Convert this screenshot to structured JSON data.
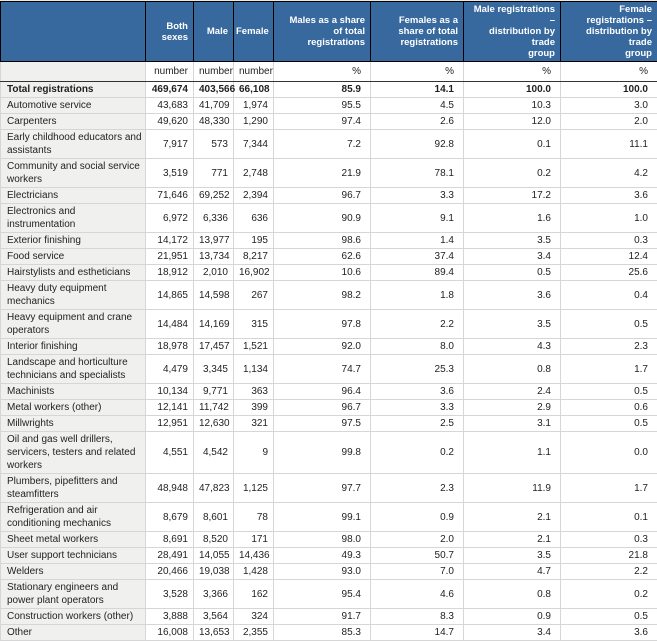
{
  "colors": {
    "header_bg": "#38699E",
    "header_text": "#FFFFFF",
    "header_border": "#000000",
    "strong_rule": "#333333",
    "row_separator": "#D6D6D6",
    "label_col_bg": "#F0F0EE",
    "cell_bg": "#FFFFFF",
    "page_bg": "#E9E9E9",
    "text": "#1F1F1F"
  },
  "chart_data": {
    "type": "table",
    "columns": [
      {
        "id": "row-label",
        "label": "",
        "lines": [
          ""
        ],
        "unit": ""
      },
      {
        "id": "both-sexes",
        "label": "Both sexes",
        "lines": [
          "Both",
          "sexes"
        ],
        "unit": "number"
      },
      {
        "id": "male",
        "label": "Male",
        "lines": [
          "Male"
        ],
        "unit": "number"
      },
      {
        "id": "female",
        "label": "Female",
        "lines": [
          "Female"
        ],
        "unit": "number"
      },
      {
        "id": "males-share-of-total",
        "label": "Males as a share of total registrations",
        "lines": [
          "Males as a share",
          "of total",
          "registrations"
        ],
        "unit": "%"
      },
      {
        "id": "females-share-of-total",
        "label": "Females as a share of total registrations",
        "lines": [
          "Females as a",
          "share of total",
          "registrations"
        ],
        "unit": "%"
      },
      {
        "id": "male-registrations-distribution",
        "label": "Male registrations – distribution by trade group",
        "lines": [
          "Male registrations –",
          "distribution by trade",
          "group"
        ],
        "unit": "%"
      },
      {
        "id": "female-registrations-distribution",
        "label": "Female registrations – distribution by trade group",
        "lines": [
          "Female registrations –",
          "distribution by trade",
          "group"
        ],
        "unit": "%"
      }
    ],
    "rows": [
      {
        "label": "Total registrations",
        "bold": true,
        "values": [
          "469,674",
          "403,566",
          "66,108",
          "85.9",
          "14.1",
          "100.0",
          "100.0"
        ]
      },
      {
        "label": "Automotive service",
        "values": [
          "43,683",
          "41,709",
          "1,974",
          "95.5",
          "4.5",
          "10.3",
          "3.0"
        ]
      },
      {
        "label": "Carpenters",
        "values": [
          "49,620",
          "48,330",
          "1,290",
          "97.4",
          "2.6",
          "12.0",
          "2.0"
        ]
      },
      {
        "label": "Early childhood educators and assistants",
        "values": [
          "7,917",
          "573",
          "7,344",
          "7.2",
          "92.8",
          "0.1",
          "11.1"
        ]
      },
      {
        "label": "Community and social service workers",
        "values": [
          "3,519",
          "771",
          "2,748",
          "21.9",
          "78.1",
          "0.2",
          "4.2"
        ]
      },
      {
        "label": "Electricians",
        "values": [
          "71,646",
          "69,252",
          "2,394",
          "96.7",
          "3.3",
          "17.2",
          "3.6"
        ]
      },
      {
        "label": "Electronics and instrumentation",
        "values": [
          "6,972",
          "6,336",
          "636",
          "90.9",
          "9.1",
          "1.6",
          "1.0"
        ]
      },
      {
        "label": "Exterior finishing",
        "values": [
          "14,172",
          "13,977",
          "195",
          "98.6",
          "1.4",
          "3.5",
          "0.3"
        ]
      },
      {
        "label": "Food service",
        "values": [
          "21,951",
          "13,734",
          "8,217",
          "62.6",
          "37.4",
          "3.4",
          "12.4"
        ]
      },
      {
        "label": "Hairstylists and estheticians",
        "values": [
          "18,912",
          "2,010",
          "16,902",
          "10.6",
          "89.4",
          "0.5",
          "25.6"
        ]
      },
      {
        "label": "Heavy duty equipment mechanics",
        "values": [
          "14,865",
          "14,598",
          "267",
          "98.2",
          "1.8",
          "3.6",
          "0.4"
        ]
      },
      {
        "label": "Heavy equipment and crane operators",
        "values": [
          "14,484",
          "14,169",
          "315",
          "97.8",
          "2.2",
          "3.5",
          "0.5"
        ]
      },
      {
        "label": "Interior finishing",
        "values": [
          "18,978",
          "17,457",
          "1,521",
          "92.0",
          "8.0",
          "4.3",
          "2.3"
        ]
      },
      {
        "label": "Landscape and horticulture technicians and specialists",
        "values": [
          "4,479",
          "3,345",
          "1,134",
          "74.7",
          "25.3",
          "0.8",
          "1.7"
        ]
      },
      {
        "label": "Machinists",
        "values": [
          "10,134",
          "9,771",
          "363",
          "96.4",
          "3.6",
          "2.4",
          "0.5"
        ]
      },
      {
        "label": "Metal workers (other)",
        "values": [
          "12,141",
          "11,742",
          "399",
          "96.7",
          "3.3",
          "2.9",
          "0.6"
        ]
      },
      {
        "label": "Millwrights",
        "values": [
          "12,951",
          "12,630",
          "321",
          "97.5",
          "2.5",
          "3.1",
          "0.5"
        ]
      },
      {
        "label": "Oil and gas well drillers, servicers, testers and related workers",
        "values": [
          "4,551",
          "4,542",
          "9",
          "99.8",
          "0.2",
          "1.1",
          "0.0"
        ]
      },
      {
        "label": "Plumbers, pipefitters and steamfitters",
        "values": [
          "48,948",
          "47,823",
          "1,125",
          "97.7",
          "2.3",
          "11.9",
          "1.7"
        ]
      },
      {
        "label": "Refrigeration and air conditioning mechanics",
        "values": [
          "8,679",
          "8,601",
          "78",
          "99.1",
          "0.9",
          "2.1",
          "0.1"
        ]
      },
      {
        "label": "Sheet metal workers",
        "values": [
          "8,691",
          "8,520",
          "171",
          "98.0",
          "2.0",
          "2.1",
          "0.3"
        ]
      },
      {
        "label": "User support technicians",
        "values": [
          "28,491",
          "14,055",
          "14,436",
          "49.3",
          "50.7",
          "3.5",
          "21.8"
        ]
      },
      {
        "label": "Welders",
        "values": [
          "20,466",
          "19,038",
          "1,428",
          "93.0",
          "7.0",
          "4.7",
          "2.2"
        ]
      },
      {
        "label": "Stationary engineers and power plant operators",
        "values": [
          "3,528",
          "3,366",
          "162",
          "95.4",
          "4.6",
          "0.8",
          "0.2"
        ]
      },
      {
        "label": "Construction workers (other)",
        "values": [
          "3,888",
          "3,564",
          "324",
          "91.7",
          "8.3",
          "0.9",
          "0.5"
        ]
      },
      {
        "label": "Other",
        "values": [
          "16,008",
          "13,653",
          "2,355",
          "85.3",
          "14.7",
          "3.4",
          "3.6"
        ]
      }
    ]
  }
}
